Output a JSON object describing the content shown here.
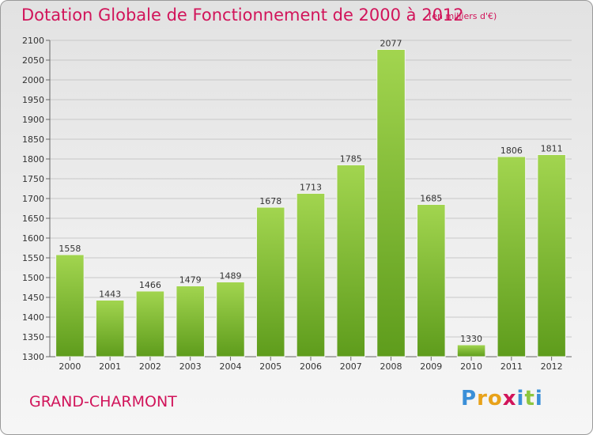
{
  "header": {
    "title": "Dotation Globale de Fonctionnement de 2000 à 2012",
    "subtitle": "(en milliers d'€)"
  },
  "footer": {
    "commune": "GRAND-CHARMONT",
    "brand_letters": [
      "P",
      "r",
      "o",
      "x",
      "i",
      "t",
      "i"
    ],
    "brand_colors": [
      "#3a8fd8",
      "#e8a21a",
      "#e8a21a",
      "#d1145a",
      "#3a8fd8",
      "#8cc63f",
      "#3a8fd8"
    ]
  },
  "colors": {
    "bar_light": "#a2d54f",
    "bar_dark": "#5e9c1c",
    "text_accent": "#d1145a"
  },
  "chart_data": {
    "type": "bar",
    "categories": [
      "2000",
      "2001",
      "2002",
      "2003",
      "2004",
      "2005",
      "2006",
      "2007",
      "2008",
      "2009",
      "2010",
      "2011",
      "2012"
    ],
    "values": [
      1558,
      1443,
      1466,
      1479,
      1489,
      1678,
      1713,
      1785,
      2077,
      1685,
      1330,
      1806,
      1811
    ],
    "ylim": [
      1300,
      2100
    ],
    "yticks": [
      1300,
      1350,
      1400,
      1450,
      1500,
      1550,
      1600,
      1650,
      1700,
      1750,
      1800,
      1850,
      1900,
      1950,
      2000,
      2050,
      2100
    ],
    "grid": true,
    "data_labels": true
  }
}
